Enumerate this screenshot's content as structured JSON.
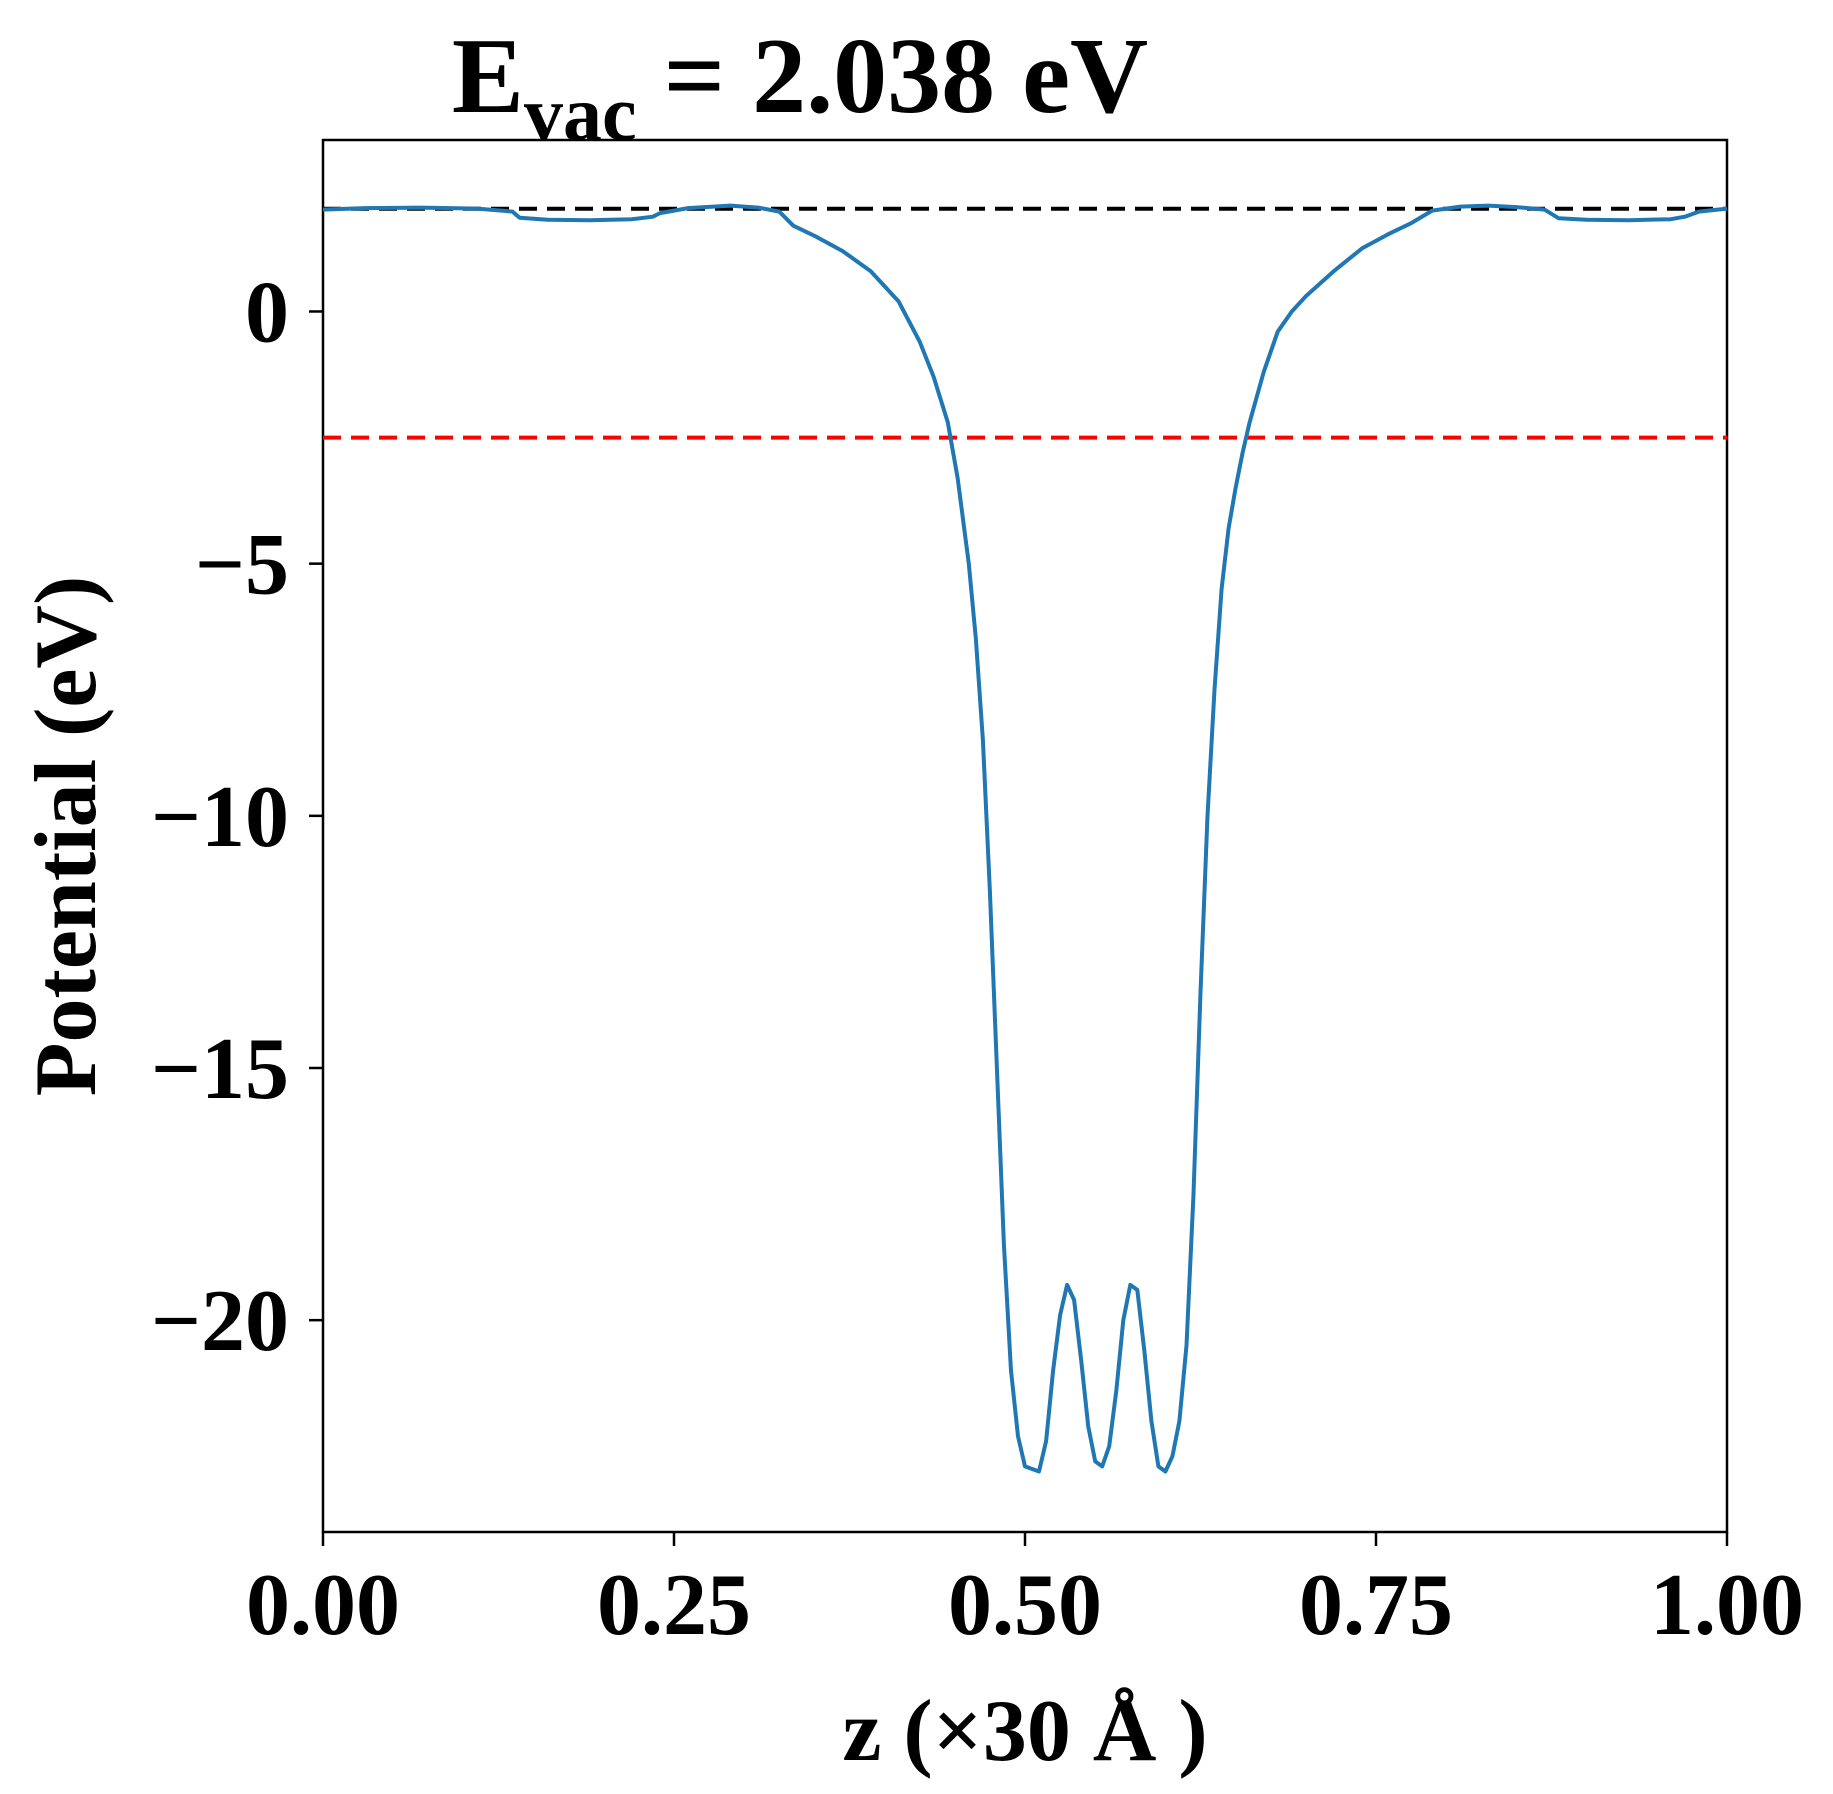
{
  "chart_data": {
    "type": "line",
    "title": {
      "prefix": "E",
      "subscript": "vac",
      "suffix": " = 2.038 eV"
    },
    "xlabel": "z (×30 Å )",
    "ylabel": "Potential (eV)",
    "xlim": [
      0,
      1
    ],
    "ylim": [
      -24.2,
      3.4
    ],
    "grid": false,
    "xticks": [
      {
        "value": 0.0,
        "label": "0.00"
      },
      {
        "value": 0.25,
        "label": "0.25"
      },
      {
        "value": 0.5,
        "label": "0.50"
      },
      {
        "value": 0.75,
        "label": "0.75"
      },
      {
        "value": 1.0,
        "label": "1.00"
      }
    ],
    "yticks": [
      {
        "value": 0,
        "label": "0"
      },
      {
        "value": -5,
        "label": "−5"
      },
      {
        "value": -10,
        "label": "−10"
      },
      {
        "value": -15,
        "label": "−15"
      },
      {
        "value": -20,
        "label": "−20"
      }
    ],
    "reference_lines": [
      {
        "y": 2.038,
        "color": "#000000",
        "style": "dashed"
      },
      {
        "y": -2.5,
        "color": "#ff0000",
        "style": "dashed"
      }
    ],
    "series": [
      {
        "color": "#1f77b4",
        "points": [
          [
            0.0,
            2.02
          ],
          [
            0.03,
            2.05
          ],
          [
            0.07,
            2.06
          ],
          [
            0.11,
            2.04
          ],
          [
            0.135,
            1.98
          ],
          [
            0.14,
            1.86
          ],
          [
            0.16,
            1.82
          ],
          [
            0.19,
            1.81
          ],
          [
            0.22,
            1.83
          ],
          [
            0.235,
            1.88
          ],
          [
            0.24,
            1.95
          ],
          [
            0.26,
            2.05
          ],
          [
            0.29,
            2.1
          ],
          [
            0.31,
            2.06
          ],
          [
            0.325,
            1.98
          ],
          [
            0.335,
            1.7
          ],
          [
            0.35,
            1.5
          ],
          [
            0.37,
            1.2
          ],
          [
            0.39,
            0.8
          ],
          [
            0.41,
            0.2
          ],
          [
            0.425,
            -0.6
          ],
          [
            0.435,
            -1.3
          ],
          [
            0.445,
            -2.2
          ],
          [
            0.452,
            -3.3
          ],
          [
            0.46,
            -5.0
          ],
          [
            0.465,
            -6.5
          ],
          [
            0.47,
            -8.5
          ],
          [
            0.475,
            -11.5
          ],
          [
            0.48,
            -15.0
          ],
          [
            0.485,
            -18.5
          ],
          [
            0.49,
            -21.0
          ],
          [
            0.495,
            -22.3
          ],
          [
            0.5,
            -22.9
          ],
          [
            0.51,
            -23.0
          ],
          [
            0.515,
            -22.4
          ],
          [
            0.52,
            -21.0
          ],
          [
            0.525,
            -19.9
          ],
          [
            0.53,
            -19.3
          ],
          [
            0.535,
            -19.6
          ],
          [
            0.54,
            -20.8
          ],
          [
            0.545,
            -22.1
          ],
          [
            0.55,
            -22.8
          ],
          [
            0.555,
            -22.9
          ],
          [
            0.56,
            -22.5
          ],
          [
            0.565,
            -21.4
          ],
          [
            0.57,
            -20.0
          ],
          [
            0.575,
            -19.3
          ],
          [
            0.58,
            -19.4
          ],
          [
            0.585,
            -20.6
          ],
          [
            0.59,
            -22.0
          ],
          [
            0.595,
            -22.9
          ],
          [
            0.6,
            -23.0
          ],
          [
            0.605,
            -22.7
          ],
          [
            0.61,
            -22.0
          ],
          [
            0.615,
            -20.5
          ],
          [
            0.62,
            -17.5
          ],
          [
            0.625,
            -13.5
          ],
          [
            0.63,
            -10.0
          ],
          [
            0.635,
            -7.5
          ],
          [
            0.64,
            -5.5
          ],
          [
            0.645,
            -4.3
          ],
          [
            0.65,
            -3.5
          ],
          [
            0.655,
            -2.8
          ],
          [
            0.66,
            -2.2
          ],
          [
            0.67,
            -1.2
          ],
          [
            0.68,
            -0.4
          ],
          [
            0.69,
            0.0
          ],
          [
            0.7,
            0.3
          ],
          [
            0.72,
            0.8
          ],
          [
            0.74,
            1.25
          ],
          [
            0.76,
            1.55
          ],
          [
            0.775,
            1.75
          ],
          [
            0.79,
            2.0
          ],
          [
            0.81,
            2.08
          ],
          [
            0.83,
            2.1
          ],
          [
            0.85,
            2.07
          ],
          [
            0.87,
            2.02
          ],
          [
            0.88,
            1.85
          ],
          [
            0.9,
            1.82
          ],
          [
            0.93,
            1.81
          ],
          [
            0.96,
            1.83
          ],
          [
            0.97,
            1.88
          ],
          [
            0.98,
            1.98
          ],
          [
            1.0,
            2.04
          ]
        ]
      }
    ]
  }
}
